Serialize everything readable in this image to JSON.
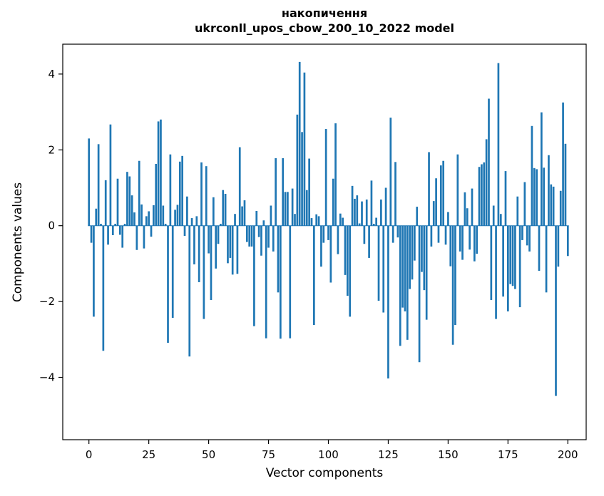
{
  "chart_data": {
    "type": "bar",
    "title_lines": [
      "накопичення",
      "ukrconll_upos_cbow_200_10_2022 model"
    ],
    "xlabel": "Vector components",
    "ylabel": "Components values",
    "bar_color": "#1f77b4",
    "grid": false,
    "legend": null,
    "x_start": 0,
    "xlim": [
      -10.9,
      207.6
    ],
    "ylim": [
      -5.65,
      4.79
    ],
    "xtick_values": [
      0,
      25,
      50,
      75,
      100,
      125,
      150,
      175,
      200
    ],
    "xtick_labels": [
      "0",
      "25",
      "50",
      "75",
      "100",
      "125",
      "150",
      "175",
      "200"
    ],
    "ytick_values": [
      -4,
      -2,
      0,
      2,
      4
    ],
    "ytick_labels": [
      "−4",
      "−2",
      "0",
      "2",
      "4"
    ],
    "values": [
      2.3,
      -0.45,
      -2.4,
      0.45,
      2.15,
      0.05,
      -3.3,
      1.2,
      -0.5,
      2.67,
      -0.25,
      0.05,
      1.24,
      -0.24,
      -0.58,
      0.05,
      1.42,
      1.3,
      0.8,
      0.35,
      -0.64,
      1.71,
      0.56,
      -0.6,
      0.25,
      0.38,
      -0.29,
      0.54,
      1.63,
      2.75,
      2.8,
      0.53,
      0.05,
      -3.09,
      1.88,
      -2.43,
      0.42,
      0.55,
      1.69,
      1.84,
      -0.27,
      0.77,
      -3.45,
      0.2,
      -1.02,
      0.25,
      -1.49,
      1.67,
      -2.46,
      1.57,
      -0.73,
      -1.96,
      0.75,
      -1.13,
      -0.48,
      0.05,
      0.94,
      0.84,
      -0.99,
      -0.85,
      -1.29,
      0.31,
      -1.27,
      2.07,
      0.51,
      0.67,
      -0.43,
      -0.55,
      -0.55,
      -2.65,
      0.39,
      -0.3,
      -0.79,
      0.14,
      -2.97,
      -0.58,
      0.53,
      -0.68,
      1.78,
      -1.76,
      -2.98,
      1.78,
      0.89,
      0.89,
      -2.97,
      0.98,
      0.31,
      2.93,
      4.32,
      2.47,
      4.04,
      0.94,
      1.77,
      0.2,
      -2.62,
      0.3,
      0.25,
      -1.08,
      -0.45,
      2.55,
      -0.38,
      -1.5,
      1.24,
      2.7,
      -0.75,
      0.32,
      0.21,
      -1.3,
      -1.85,
      -2.4,
      1.05,
      0.71,
      0.8,
      0.06,
      0.64,
      -0.48,
      0.69,
      -0.85,
      1.19,
      0.05,
      0.21,
      -1.98,
      0.69,
      -2.29,
      1.0,
      -4.03,
      2.85,
      -0.45,
      1.68,
      -0.31,
      -3.17,
      -2.16,
      -2.26,
      -3.01,
      -1.67,
      -1.42,
      -0.92,
      0.5,
      -3.6,
      -1.22,
      -1.7,
      -2.48,
      1.94,
      -0.55,
      0.65,
      1.25,
      -0.45,
      1.59,
      1.71,
      -0.5,
      0.36,
      -1.07,
      -3.14,
      -2.62,
      1.88,
      -0.68,
      -0.9,
      0.88,
      0.46,
      -0.63,
      0.98,
      -0.94,
      -0.74,
      1.55,
      1.62,
      1.67,
      2.28,
      3.35,
      -1.96,
      0.53,
      -2.46,
      4.29,
      0.31,
      -1.87,
      1.44,
      -2.26,
      -1.54,
      -1.59,
      -1.67,
      0.77,
      -2.15,
      -0.38,
      1.15,
      -0.52,
      -0.68,
      2.63,
      1.52,
      1.49,
      -1.19,
      2.99,
      1.53,
      -1.76,
      1.86,
      1.09,
      1.03,
      -4.49,
      -1.08,
      0.92,
      3.25,
      2.16,
      -0.8
    ]
  }
}
